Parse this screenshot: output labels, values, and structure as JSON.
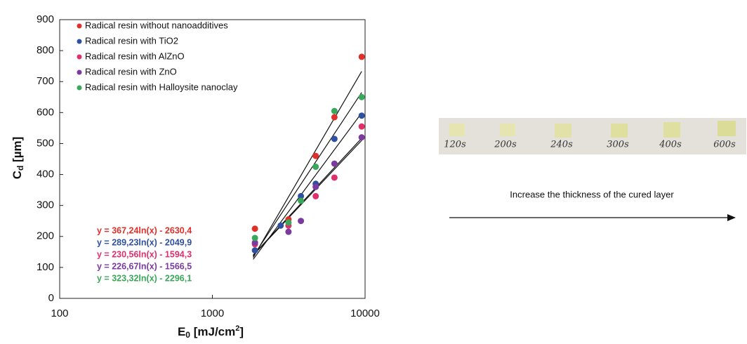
{
  "chart_data": {
    "type": "scatter",
    "xlabel": [
      "E",
      "0",
      " [mJ/cm",
      "2",
      "]"
    ],
    "ylabel": [
      "C",
      "d",
      " [µm]"
    ],
    "xscale": "log",
    "xlim": [
      100,
      10000
    ],
    "xticks": [
      100,
      1000,
      10000
    ],
    "ylim": [
      0,
      900
    ],
    "yticks": [
      0,
      100,
      200,
      300,
      400,
      500,
      600,
      700,
      800,
      900
    ],
    "legend": "upper left",
    "series": [
      {
        "name": "Radical resin without nanoadditives",
        "color": "#e0302a",
        "x": [
          1900,
          3150,
          4750,
          6300,
          9500
        ],
        "values": [
          225,
          255,
          460,
          585,
          780
        ],
        "equation": "y = 367,24ln(x) - 2630,4",
        "trend": {
          "x": [
            1850,
            9500
          ],
          "y": [
            132,
            733
          ]
        }
      },
      {
        "name": "Radical resin with TiO2",
        "color": "#2f4fa0",
        "x": [
          1900,
          2800,
          3800,
          4750,
          6300,
          9500
        ],
        "values": [
          155,
          235,
          330,
          370,
          515,
          590
        ],
        "equation": "y = 289,23ln(x)  - 2049,9",
        "trend": {
          "x": [
            1850,
            9500
          ],
          "y": [
            126,
            599
          ]
        }
      },
      {
        "name": "Radical resin with AlZnO",
        "color": "#e0306a",
        "x": [
          1900,
          3150,
          4750,
          6300,
          9500
        ],
        "values": [
          175,
          235,
          330,
          390,
          555
        ],
        "equation": "y = 230,56ln(x) - 1594,3",
        "trend": {
          "x": [
            1850,
            9500
          ],
          "y": [
            140,
            517
          ]
        }
      },
      {
        "name": "Radical resin with ZnO",
        "color": "#7a3aa0",
        "x": [
          1900,
          3150,
          3800,
          4750,
          6300,
          9500
        ],
        "values": [
          180,
          215,
          250,
          360,
          435,
          520
        ],
        "equation": "y = 226,67ln(x) - 1566,5",
        "trend": {
          "x": [
            1850,
            9500
          ],
          "y": [
            139,
            510
          ]
        }
      },
      {
        "name": "Radical resin with Halloysite nanoclay",
        "color": "#3aa85a",
        "x": [
          1900,
          3150,
          3800,
          4750,
          6300,
          9500
        ],
        "values": [
          195,
          245,
          315,
          425,
          605,
          650
        ],
        "equation": "y = 323,32ln(x) - 2296,1",
        "trend": {
          "x": [
            1850,
            9500
          ],
          "y": [
            136,
            665
          ]
        }
      }
    ]
  },
  "photo": {
    "labels": [
      "120s",
      "200s",
      "240s",
      "300s",
      "400s",
      "600s"
    ],
    "caption": "Increase the thickness of the cured layer"
  }
}
